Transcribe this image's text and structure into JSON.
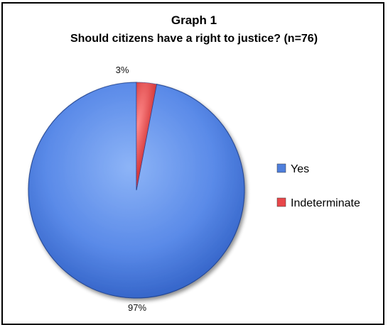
{
  "chart_data": {
    "type": "pie",
    "title": "Graph 1",
    "subtitle": "Should citizens have a right to justice? (n=76)",
    "categories": [
      "Yes",
      "Indeterminate"
    ],
    "values": [
      97,
      3
    ],
    "data_labels": [
      "97%",
      "3%"
    ],
    "colors": [
      "#4f7fdc",
      "#e8474a"
    ],
    "legend": {
      "placement": "right",
      "entries": [
        "Yes",
        "Indeterminate"
      ]
    }
  }
}
